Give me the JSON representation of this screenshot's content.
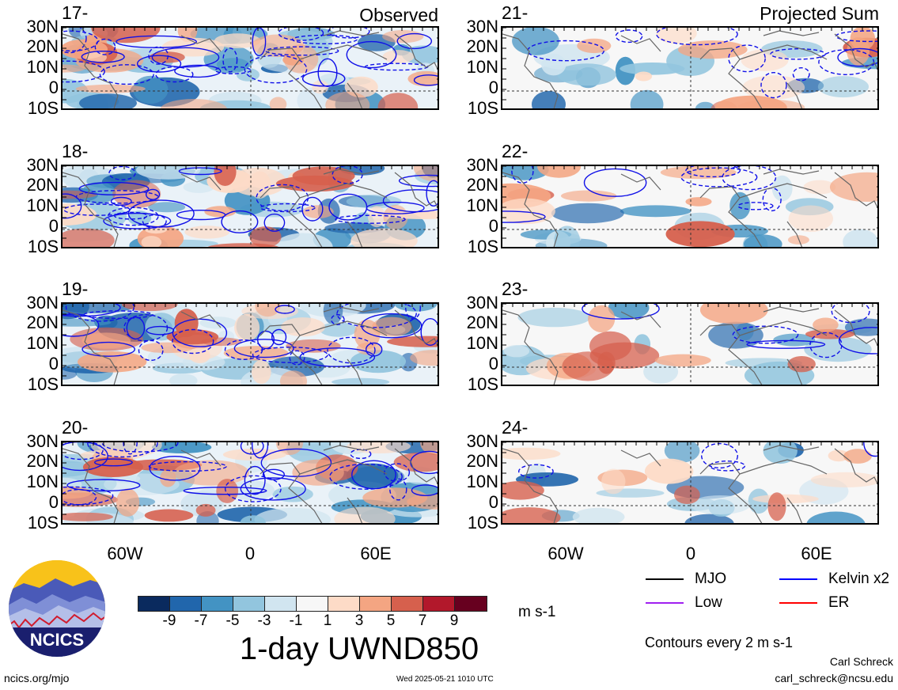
{
  "left_column": {
    "title": "Observed",
    "panels": [
      {
        "date": "17-May"
      },
      {
        "date": "18-May"
      },
      {
        "date": "19-May"
      },
      {
        "date": "20-May"
      }
    ]
  },
  "right_column": {
    "title": "Projected Sum",
    "panels": [
      {
        "date": "21-May"
      },
      {
        "date": "22-May"
      },
      {
        "date": "23-May"
      },
      {
        "date": "24-May"
      }
    ]
  },
  "y_axis_labels": [
    "30N",
    "20N",
    "10N",
    "0",
    "10S"
  ],
  "x_axis_labels": [
    "60W",
    "0",
    "60E"
  ],
  "colorbar": {
    "colors": [
      "#0a2a5e",
      "#2166ac",
      "#4393c3",
      "#92c5de",
      "#d1e5f0",
      "#f7f7f7",
      "#fddbc7",
      "#f4a582",
      "#d6604d",
      "#b2182b",
      "#67001f"
    ],
    "ticks": [
      "-9",
      "-7",
      "-5",
      "-3",
      "-1",
      "1",
      "3",
      "5",
      "7",
      "9"
    ],
    "units": "m s-1"
  },
  "main_title": "1-day UWND850",
  "legend": {
    "items": [
      {
        "label": "MJO",
        "color": "#000000"
      },
      {
        "label": "Kelvin x2",
        "color": "#0000ff"
      },
      {
        "label": "Low",
        "color": "#a020f0"
      },
      {
        "label": "ER",
        "color": "#ff0000"
      }
    ],
    "contours_note": "Contours every 2 m s-1"
  },
  "logo_text": "NCICS",
  "footer": {
    "url": "ncics.org/mjo",
    "timestamp": "Wed 2025-05-21 1010 UTC",
    "author": "Carl Schreck",
    "email": "carl_schreck@ncsu.edu"
  }
}
